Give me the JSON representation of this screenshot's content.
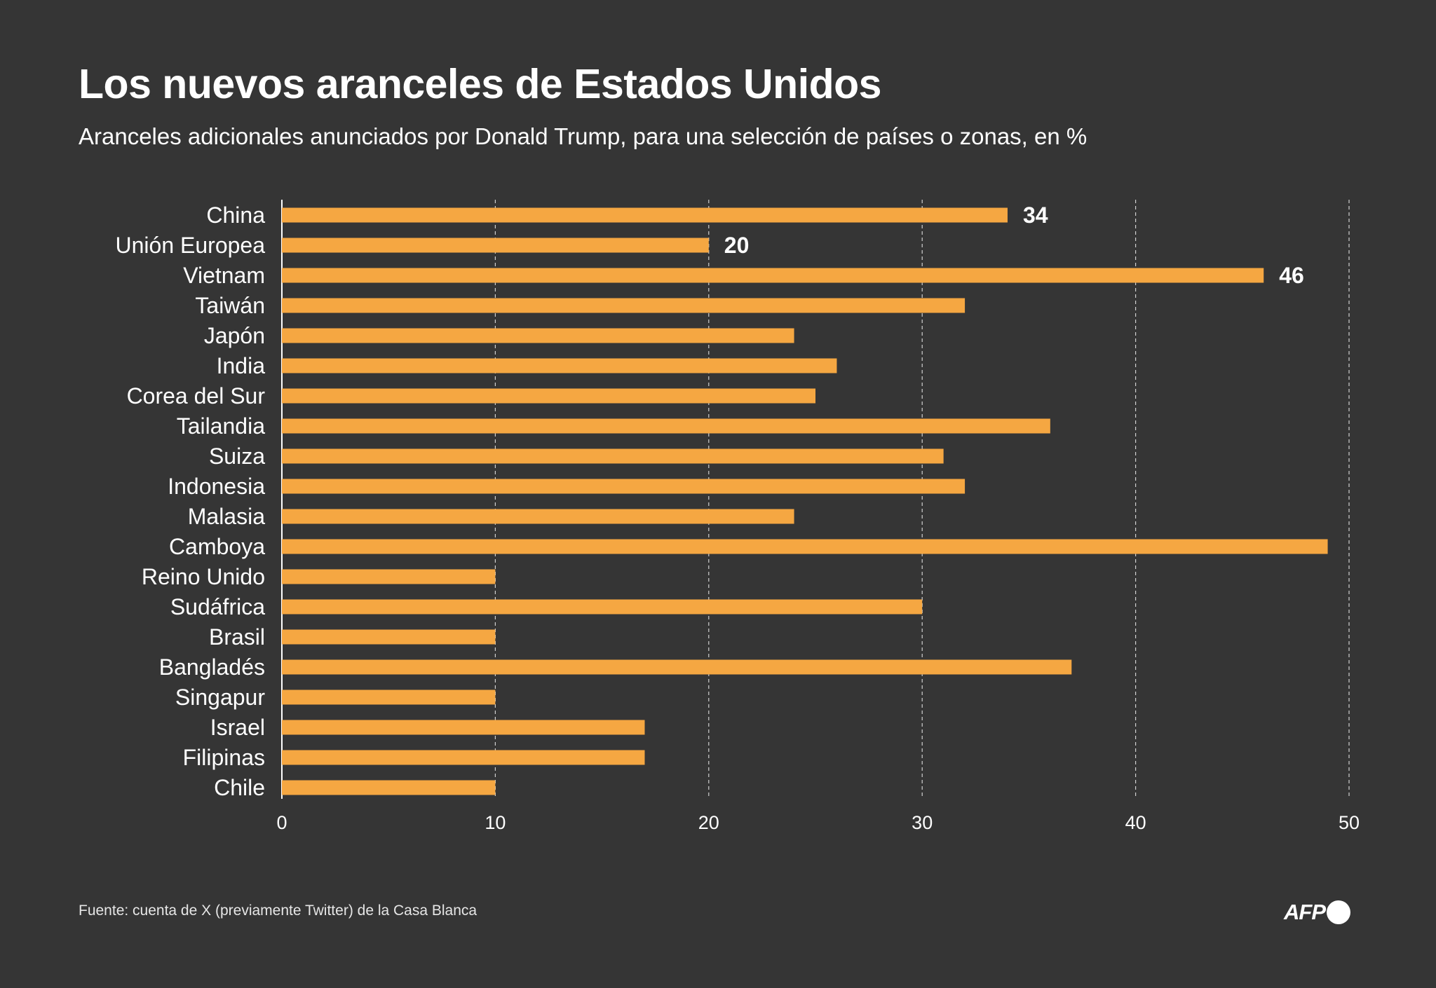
{
  "header": {
    "title": "Los nuevos aranceles de Estados Unidos",
    "subtitle": "Aranceles adicionales anunciados por Donald Trump, para una selección de países o zonas, en %"
  },
  "footer": {
    "source": "Fuente: cuenta de X (previamente Twitter) de la Casa Blanca",
    "logo": "AFP"
  },
  "colors": {
    "background": "#353535",
    "bar": "#f5a742",
    "grid": "#d0d0d0",
    "text": "#ffffff"
  },
  "chart_data": {
    "type": "bar",
    "orientation": "horizontal",
    "title": "Los nuevos aranceles de Estados Unidos",
    "subtitle": "Aranceles adicionales anunciados por Donald Trump, para una selección de países o zonas, en %",
    "xlabel": "",
    "ylabel": "",
    "categories": [
      "China",
      "Unión Europea",
      "Vietnam",
      "Taiwán",
      "Japón",
      "India",
      "Corea del Sur",
      "Tailandia",
      "Suiza",
      "Indonesia",
      "Malasia",
      "Camboya",
      "Reino Unido",
      "Sudáfrica",
      "Brasil",
      "Bangladés",
      "Singapur",
      "Israel",
      "Filipinas",
      "Chile"
    ],
    "values": [
      34,
      20,
      46,
      32,
      24,
      26,
      25,
      36,
      31,
      32,
      24,
      49,
      10,
      30,
      10,
      37,
      10,
      17,
      17,
      10
    ],
    "data_labels": [
      {
        "category": "China",
        "text": "34"
      },
      {
        "category": "Unión Europea",
        "text": "20"
      },
      {
        "category": "Vietnam",
        "text": "46"
      }
    ],
    "xlim": [
      0,
      50
    ],
    "xticks": [
      "0",
      "10",
      "20",
      "30",
      "40",
      "50"
    ],
    "grid": "vertical dashed",
    "legend": "none"
  }
}
